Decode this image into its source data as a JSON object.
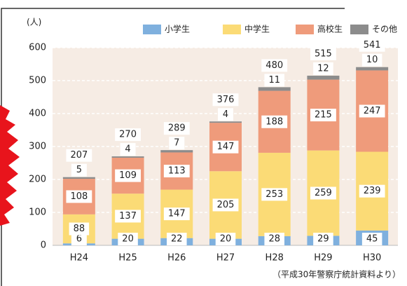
{
  "chart_data": {
    "type": "stacked-bar",
    "unit_label": "(人)",
    "source": "（平成30年警察庁統計資料より）",
    "categories": [
      "H24",
      "H25",
      "H26",
      "H27",
      "H28",
      "H29",
      "H30"
    ],
    "series": [
      {
        "name": "小学生",
        "color": "#7fb0de",
        "values": [
          6,
          20,
          22,
          20,
          28,
          29,
          45
        ]
      },
      {
        "name": "中学生",
        "color": "#fbdb76",
        "values": [
          88,
          137,
          147,
          205,
          253,
          259,
          239
        ]
      },
      {
        "name": "高校生",
        "color": "#ef9b7b",
        "values": [
          108,
          109,
          113,
          147,
          188,
          215,
          247
        ]
      },
      {
        "name": "その他",
        "color": "#8c8c8c",
        "values": [
          5,
          4,
          7,
          4,
          11,
          12,
          10
        ]
      }
    ],
    "totals": [
      207,
      270,
      289,
      376,
      480,
      515,
      541
    ],
    "ylim": [
      0,
      600
    ],
    "yticks": [
      0,
      100,
      200,
      300,
      400,
      500,
      600
    ],
    "grid": true
  }
}
